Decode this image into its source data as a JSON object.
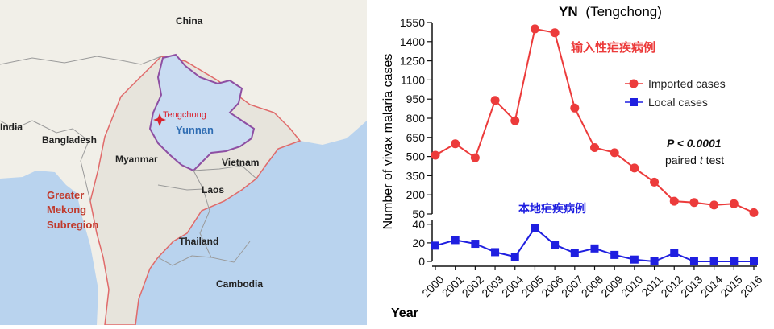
{
  "map": {
    "labels": {
      "china": "China",
      "india": "India",
      "bangladesh": "Bangladesh",
      "myanmar": "Myanmar",
      "vietnam": "Vietnam",
      "laos": "Laos",
      "thailand": "Thailand",
      "cambodia": "Cambodia",
      "tengchong": "Tengchong",
      "yunnan": "Yunnan",
      "gms_line1": "Greater",
      "gms_line2": "Mekong",
      "gms_line3": "Subregion"
    },
    "colors": {
      "sea": "#b9d3ee",
      "land": "#f1efe8",
      "gms_land": "#e7e4dc",
      "yunnan_fill": "#c9dcf2",
      "yunnan_border": "#8e4fa3",
      "gms_border": "#e06a6a",
      "region_label": "#c0392b",
      "yunnan_label": "#2f6db3",
      "tengchong_marker": "#d9232f"
    }
  },
  "chart_data": {
    "type": "line",
    "title_bold": "YN",
    "title_rest": "(Tengchong)",
    "xlabel": "Year",
    "ylabel": "Number of vivax malaria cases",
    "x": [
      "2000",
      "2001",
      "2002",
      "2003",
      "2004",
      "2005",
      "2006",
      "2007",
      "2008",
      "2009",
      "2010",
      "2011",
      "2012",
      "2013",
      "2014",
      "2015",
      "2016"
    ],
    "y_upper_ticks": [
      50,
      200,
      350,
      500,
      650,
      800,
      950,
      1100,
      1250,
      1400,
      1550
    ],
    "y_lower_ticks": [
      0,
      20,
      40
    ],
    "ylim_upper": [
      50,
      1550
    ],
    "ylim_lower": [
      0,
      45
    ],
    "series": [
      {
        "name": "Imported cases",
        "color": "#ec3b3b",
        "marker": "circle",
        "axis": "upper",
        "values": [
          510,
          600,
          490,
          940,
          780,
          1500,
          1470,
          880,
          570,
          530,
          410,
          300,
          150,
          140,
          120,
          130,
          60
        ]
      },
      {
        "name": "Local cases",
        "color": "#1f1fe0",
        "marker": "square",
        "axis": "lower",
        "values": [
          17,
          23,
          19,
          10,
          5,
          36,
          18,
          9,
          14,
          7,
          2,
          0,
          9,
          0,
          0,
          0,
          0
        ]
      }
    ],
    "annotations": {
      "imported_cn": "输入性疟疾病例",
      "local_cn": "本地疟疾病例",
      "stat_p": "P < 0.0001",
      "stat_test_prefix": "paired ",
      "stat_test_t": "t",
      "stat_test_suffix": " test"
    },
    "legend_position": "right"
  }
}
